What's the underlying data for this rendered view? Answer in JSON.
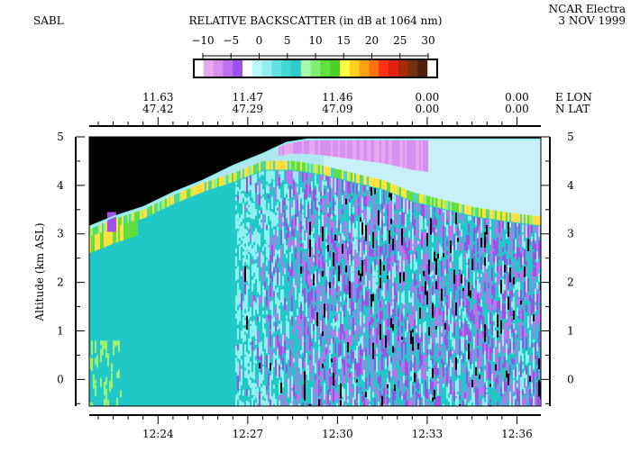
{
  "header": {
    "instrument": "SABL",
    "platform": "NCAR Electra",
    "date": "3 NOV 1999",
    "colorbar_title": "RELATIVE BACKSCATTER (in dB at 1064 nm)"
  },
  "colorbar": {
    "ticks": [
      "−10",
      "−5",
      "0",
      "5",
      "10",
      "15",
      "20",
      "25",
      "30"
    ],
    "colors": [
      "#ffffff",
      "#e8a8f0",
      "#d890f0",
      "#c070f0",
      "#a050e8",
      "#ffffff",
      "#b8f8f8",
      "#90f0f0",
      "#60e0e0",
      "#40d8d0",
      "#30c8c8",
      "#a8f8a8",
      "#80f070",
      "#60e040",
      "#48d028",
      "#ffff40",
      "#ffd020",
      "#ffa010",
      "#ff7010",
      "#ff3010",
      "#e02010",
      "#a82808",
      "#783010",
      "#502008",
      "#ffffff"
    ]
  },
  "top_axis": {
    "labels": [
      {
        "lon": "11.63",
        "lat": "47.42"
      },
      {
        "lon": "11.47",
        "lat": "47.29"
      },
      {
        "lon": "11.46",
        "lat": "47.09"
      },
      {
        "lon": "0.00",
        "lat": "0.00"
      },
      {
        "lon": "0.00",
        "lat": "0.00"
      }
    ],
    "lon_label": "E LON",
    "lat_label": "N LAT"
  },
  "chart_data": {
    "type": "heatmap",
    "title": "RELATIVE BACKSCATTER (in dB at 1064 nm)",
    "ylabel": "Altitude (km ASL)",
    "xlabel": "",
    "ylim": [
      -0.55,
      5.0
    ],
    "yticks": [
      "5",
      "4",
      "3",
      "2",
      "1",
      "0"
    ],
    "xtick_labels": [
      "12:24",
      "12:27",
      "12:30",
      "12:33",
      "12:36"
    ],
    "xtick_minutes": [
      24,
      27,
      30,
      33,
      36
    ],
    "xlim_minutes": [
      21.7,
      36.8
    ],
    "color_scale_db": [
      -10,
      30
    ],
    "aircraft_altitude_km": [
      [
        21.7,
        3.15
      ],
      [
        22.5,
        3.35
      ],
      [
        23.5,
        3.55
      ],
      [
        24.5,
        3.85
      ],
      [
        25.5,
        4.1
      ],
      [
        26.5,
        4.4
      ],
      [
        27.5,
        4.65
      ],
      [
        28.3,
        4.88
      ],
      [
        29.0,
        4.95
      ],
      [
        36.8,
        4.95
      ]
    ],
    "cloud_top_km": [
      [
        21.7,
        3.05
      ],
      [
        22.5,
        3.25
      ],
      [
        23.5,
        3.45
      ],
      [
        24.5,
        3.75
      ],
      [
        25.5,
        4.0
      ],
      [
        26.5,
        4.2
      ],
      [
        27.5,
        4.45
      ],
      [
        28.5,
        4.45
      ],
      [
        29.5,
        4.35
      ],
      [
        30.5,
        4.2
      ],
      [
        31.5,
        4.05
      ],
      [
        32.5,
        3.8
      ],
      [
        33.5,
        3.65
      ],
      [
        34.5,
        3.5
      ],
      [
        35.5,
        3.4
      ],
      [
        36.8,
        3.3
      ]
    ]
  }
}
